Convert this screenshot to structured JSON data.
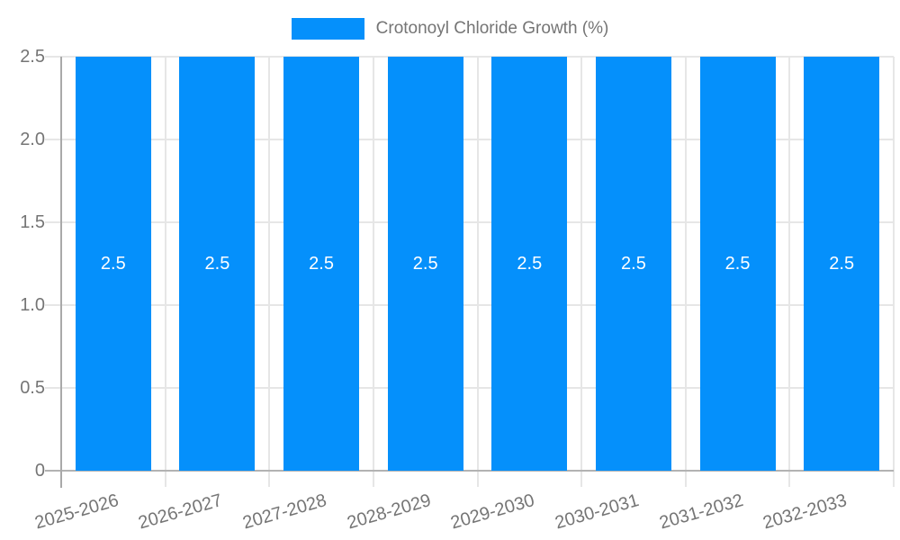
{
  "chart_data": {
    "type": "bar",
    "title": "",
    "xlabel": "",
    "ylabel": "",
    "legend": {
      "position": "top",
      "label": "Crotonoyl Chloride Growth (%)"
    },
    "categories": [
      "2025-2026",
      "2026-2027",
      "2027-2028",
      "2028-2029",
      "2029-2030",
      "2030-2031",
      "2031-2032",
      "2032-2033"
    ],
    "series": [
      {
        "name": "Crotonoyl Chloride Growth (%)",
        "values": [
          2.5,
          2.5,
          2.5,
          2.5,
          2.5,
          2.5,
          2.5,
          2.5
        ],
        "bar_labels": [
          "2.5",
          "2.5",
          "2.5",
          "2.5",
          "2.5",
          "2.5",
          "2.5",
          "2.5"
        ]
      }
    ],
    "ylim": [
      0,
      2.5
    ],
    "yticks": [
      0,
      0.5,
      1.0,
      1.5,
      2.0,
      2.5
    ],
    "ytick_labels": [
      "0",
      "0.5",
      "1.0",
      "1.5",
      "2.0",
      "2.5"
    ],
    "grid": true,
    "colors": {
      "bar": "#0590fb",
      "gridline": "#e6e6e6",
      "axis_line": "#a9a9a9",
      "baseline": "#b3b3b3",
      "tick_text": "#757575",
      "bar_label_text": "#ffffff"
    }
  }
}
